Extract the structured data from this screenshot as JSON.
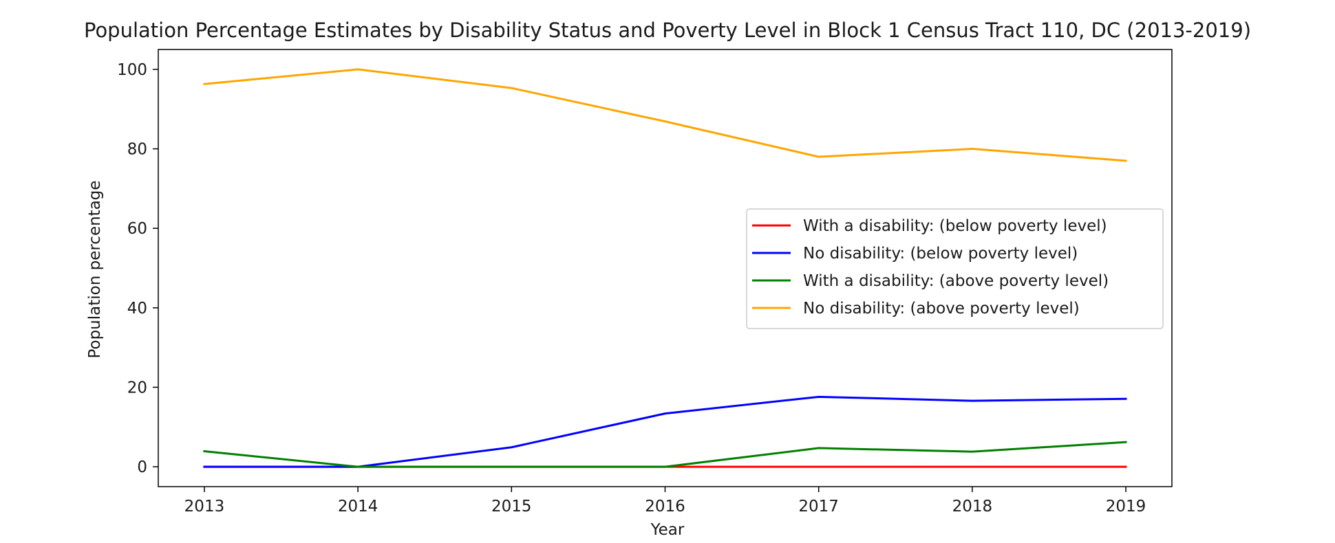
{
  "chart_data": {
    "type": "line",
    "title": "Population Percentage Estimates by Disability Status and Poverty Level in Block 1 Census Tract 110, DC (2013-2019)",
    "xlabel": "Year",
    "ylabel": "Population percentage",
    "x": [
      2013,
      2014,
      2015,
      2016,
      2017,
      2018,
      2019
    ],
    "ylim": [
      -5,
      105
    ],
    "yticks": [
      0,
      20,
      40,
      60,
      80,
      100
    ],
    "grid": false,
    "legend_position": "center-right",
    "series": [
      {
        "name": "With a disability: (below poverty level)",
        "color": "#ff0000",
        "values": [
          0,
          0,
          0,
          0,
          0,
          0,
          0
        ]
      },
      {
        "name": "No disability: (below poverty level)",
        "color": "#0000ff",
        "values": [
          0,
          0,
          4.9,
          13.4,
          17.6,
          16.6,
          17.1
        ]
      },
      {
        "name": "With a disability: (above poverty level)",
        "color": "#008000",
        "values": [
          3.9,
          0,
          0,
          0,
          4.7,
          3.8,
          6.2
        ]
      },
      {
        "name": "No disability: (above poverty level)",
        "color": "#ffa500",
        "values": [
          96.3,
          100,
          95.3,
          86.9,
          78.0,
          80.0,
          77.0
        ]
      }
    ]
  }
}
